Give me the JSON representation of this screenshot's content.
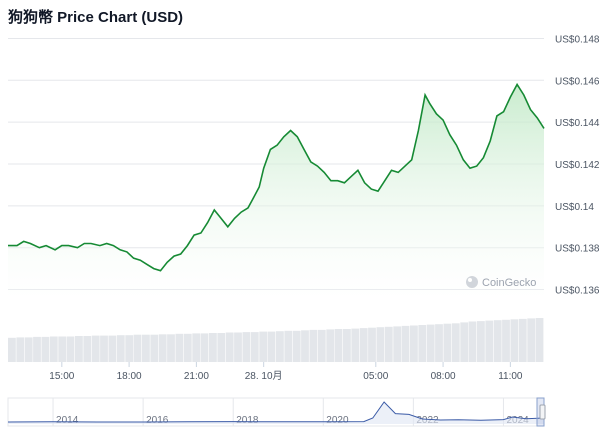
{
  "page_title": "狗狗幣 Price Chart (USD)",
  "watermark": "CoinGecko",
  "colors": {
    "line": "#168a34",
    "fill_top": "#bfe8c5",
    "fill_bottom": "#ffffff",
    "grid": "#e5e7eb",
    "tick_text": "#4b5563",
    "volume": "#e3e6ea",
    "navigator_line": "#3b5ba7",
    "navigator_fill": "#dfe6f4"
  },
  "chart_data": [
    {
      "type": "line",
      "title": "狗狗幣 Price Chart (USD)",
      "xlabel": "",
      "ylabel": "",
      "grid": true,
      "legend": "none",
      "ylim": [
        0.1355,
        0.1485
      ],
      "y_ticks": [
        0.136,
        0.138,
        0.14,
        0.142,
        0.144,
        0.146,
        0.148
      ],
      "y_tick_labels": [
        "US$0.136",
        "US$0.138",
        "US$0.14",
        "US$0.142",
        "US$0.144",
        "US$0.146",
        "US$0.148"
      ],
      "x_range_hours": [
        12.6,
        36.5
      ],
      "x_ticks": [
        15,
        18,
        21,
        24,
        29,
        32,
        35
      ],
      "x_tick_labels": [
        "15:00",
        "18:00",
        "21:00",
        "28. 10月",
        "05:00",
        "08:00",
        "11:00"
      ],
      "x_values_hour_of_day_from_27_oct": [
        12.6,
        13.0,
        13.3,
        13.6,
        14.0,
        14.3,
        14.7,
        15.0,
        15.3,
        15.7,
        16.0,
        16.3,
        16.7,
        17.0,
        17.3,
        17.6,
        17.9,
        18.2,
        18.5,
        18.8,
        19.1,
        19.4,
        19.7,
        20.0,
        20.3,
        20.6,
        20.9,
        21.2,
        21.5,
        21.8,
        22.1,
        22.4,
        22.7,
        23.0,
        23.3,
        23.5,
        23.8,
        24.0,
        24.3,
        24.6,
        24.9,
        25.2,
        25.5,
        25.8,
        26.1,
        26.4,
        26.7,
        27.0,
        27.3,
        27.6,
        27.9,
        28.2,
        28.5,
        28.8,
        29.1,
        29.4,
        29.7,
        30.0,
        30.3,
        30.6,
        30.9,
        31.2,
        31.4,
        31.7,
        32.0,
        32.3,
        32.6,
        32.9,
        33.2,
        33.5,
        33.8,
        34.1,
        34.4,
        34.7,
        35.0,
        35.3,
        35.6,
        35.9,
        36.2,
        36.5
      ],
      "series": [
        {
          "name": "",
          "values": [
            0.1381,
            0.1381,
            0.1383,
            0.1382,
            0.138,
            0.1381,
            0.1379,
            0.1381,
            0.1381,
            0.138,
            0.1382,
            0.1382,
            0.1381,
            0.1382,
            0.1381,
            0.1379,
            0.1378,
            0.1375,
            0.1374,
            0.1372,
            0.137,
            0.1369,
            0.1373,
            0.1376,
            0.1377,
            0.1381,
            0.1386,
            0.1387,
            0.1392,
            0.1398,
            0.1394,
            0.139,
            0.1394,
            0.1397,
            0.1399,
            0.1403,
            0.1409,
            0.1418,
            0.1427,
            0.1429,
            0.1433,
            0.1436,
            0.1433,
            0.1427,
            0.1421,
            0.1419,
            0.1416,
            0.1412,
            0.1412,
            0.1411,
            0.1414,
            0.1417,
            0.1411,
            0.1408,
            0.1407,
            0.1412,
            0.1417,
            0.1416,
            0.1419,
            0.1422,
            0.1436,
            0.1453,
            0.1449,
            0.1444,
            0.1441,
            0.1434,
            0.1429,
            0.1422,
            0.1418,
            0.1419,
            0.1423,
            0.1431,
            0.1443,
            0.1445,
            0.1452,
            0.1458,
            0.1453,
            0.1446,
            0.1442,
            0.1437
          ]
        }
      ]
    },
    {
      "type": "bar",
      "title": "",
      "note": "volume bars below price chart (unlabeled)",
      "relative_values": [
        0.55,
        0.56,
        0.56,
        0.57,
        0.57,
        0.58,
        0.58,
        0.58,
        0.59,
        0.59,
        0.6,
        0.6,
        0.6,
        0.61,
        0.61,
        0.62,
        0.62,
        0.62,
        0.63,
        0.63,
        0.64,
        0.64,
        0.65,
        0.65,
        0.66,
        0.66,
        0.67,
        0.67,
        0.68,
        0.68,
        0.69,
        0.69,
        0.7,
        0.71,
        0.71,
        0.72,
        0.73,
        0.73,
        0.74,
        0.75,
        0.75,
        0.76,
        0.77,
        0.78,
        0.79,
        0.8,
        0.81,
        0.82,
        0.83,
        0.84,
        0.85,
        0.86,
        0.87,
        0.88,
        0.9,
        0.92,
        0.93,
        0.94,
        0.95,
        0.96,
        0.97,
        0.98,
        0.99,
        1.0
      ]
    },
    {
      "type": "line",
      "title": "",
      "note": "long-range navigator",
      "x_tick_labels": [
        "2014",
        "2016",
        "2018",
        "2020",
        "2022",
        "2024"
      ],
      "x_ticks": [
        2014,
        2016,
        2018,
        2020,
        2022,
        2024
      ],
      "x_range_years": [
        2013.0,
        2024.9
      ],
      "years": [
        2013.0,
        2014.0,
        2015.0,
        2016.0,
        2017.0,
        2018.0,
        2019.0,
        2020.0,
        2020.9,
        2021.1,
        2021.35,
        2021.6,
        2021.9,
        2022.2,
        2022.6,
        2023.0,
        2023.5,
        2024.0,
        2024.2,
        2024.5,
        2024.9
      ],
      "relative_values": [
        0.0,
        0.01,
        0.0,
        0.0,
        0.01,
        0.02,
        0.01,
        0.01,
        0.02,
        0.2,
        1.0,
        0.42,
        0.38,
        0.15,
        0.1,
        0.11,
        0.09,
        0.12,
        0.25,
        0.16,
        0.2
      ]
    }
  ]
}
